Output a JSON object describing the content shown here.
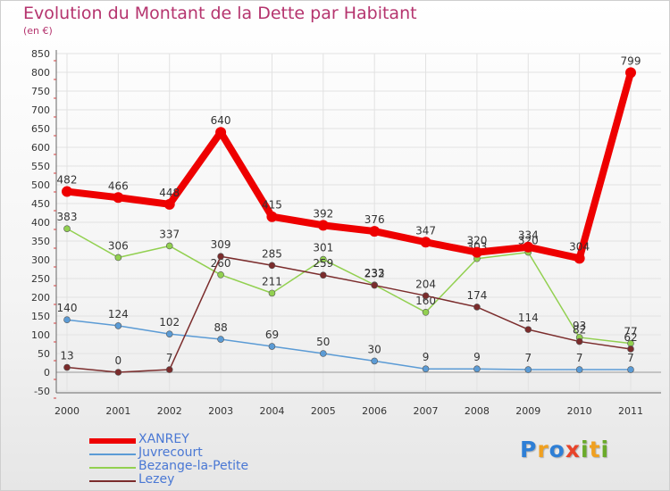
{
  "title": "Evolution du Montant de la Dette par Habitant",
  "unit": "(en €)",
  "logo": [
    "P",
    "r",
    "o",
    "x",
    "i",
    "t",
    "i"
  ],
  "logo_colors": [
    "#2e7fd6",
    "#f0a020",
    "#2e7fd6",
    "#e8442a",
    "#6aaa2a",
    "#f0a020",
    "#6aaa2a"
  ],
  "chart_data": {
    "type": "line",
    "x": [
      "2000",
      "2001",
      "2002",
      "2003",
      "2004",
      "2005",
      "2006",
      "2007",
      "2008",
      "2009",
      "2010",
      "2011"
    ],
    "ylim": [
      -50,
      850
    ],
    "yticks": [
      -50,
      0,
      50,
      100,
      150,
      200,
      250,
      300,
      350,
      400,
      450,
      500,
      550,
      600,
      650,
      700,
      750,
      800,
      850
    ],
    "grid": true,
    "legend_position": "bottom-left",
    "series": [
      {
        "name": "XANREY",
        "color": "#ee0000",
        "values": [
          482,
          466,
          448,
          640,
          415,
          392,
          376,
          347,
          320,
          334,
          304,
          799
        ]
      },
      {
        "name": "Juvrecourt",
        "color": "#5b9bd5",
        "values": [
          140,
          124,
          102,
          88,
          69,
          50,
          30,
          9,
          9,
          7,
          7,
          7
        ]
      },
      {
        "name": "Bezange-la-Petite",
        "color": "#92d050",
        "values": [
          383,
          306,
          337,
          260,
          211,
          301,
          233,
          160,
          303,
          320,
          93,
          77
        ]
      },
      {
        "name": "Lezey",
        "color": "#7b2c2c",
        "values": [
          13,
          0,
          7,
          309,
          285,
          259,
          232,
          204,
          174,
          114,
          82,
          62
        ]
      }
    ]
  }
}
